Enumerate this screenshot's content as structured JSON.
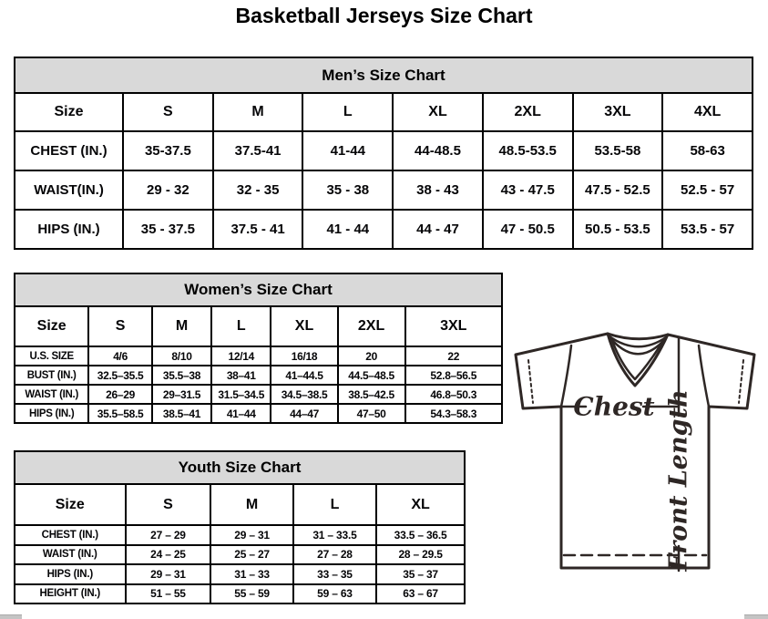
{
  "page": {
    "title": "Basketball Jerseys Size Chart"
  },
  "mens": {
    "title": "Men’s Size Chart",
    "columns": [
      "Size",
      "S",
      "M",
      "L",
      "XL",
      "2XL",
      "3XL",
      "4XL"
    ],
    "rows": [
      {
        "label": "CHEST (IN.)",
        "values": [
          "35-37.5",
          "37.5-41",
          "41-44",
          "44-48.5",
          "48.5-53.5",
          "53.5-58",
          "58-63"
        ]
      },
      {
        "label": "WAIST(IN.)",
        "values": [
          "29 - 32",
          "32 - 35",
          "35 - 38",
          "38 - 43",
          "43 - 47.5",
          "47.5 - 52.5",
          "52.5 - 57"
        ]
      },
      {
        "label": "HIPS (IN.)",
        "values": [
          "35 - 37.5",
          "37.5 - 41",
          "41 - 44",
          "44 - 47",
          "47 - 50.5",
          "50.5 - 53.5",
          "53.5 - 57"
        ]
      }
    ]
  },
  "womens": {
    "title": "Women’s Size Chart",
    "columns": [
      "Size",
      "S",
      "M",
      "L",
      "XL",
      "2XL",
      "3XL"
    ],
    "rows": [
      {
        "label": "U.S. SIZE",
        "values": [
          "4/6",
          "8/10",
          "12/14",
          "16/18",
          "20",
          "22"
        ]
      },
      {
        "label": "BUST (IN.)",
        "values": [
          "32.5–35.5",
          "35.5–38",
          "38–41",
          "41–44.5",
          "44.5–48.5",
          "52.8–56.5"
        ]
      },
      {
        "label": "WAIST (IN.)",
        "values": [
          "26–29",
          "29–31.5",
          "31.5–34.5",
          "34.5–38.5",
          "38.5–42.5",
          "46.8–50.3"
        ]
      },
      {
        "label": "HIPS (IN.)",
        "values": [
          "35.5–58.5",
          "38.5–41",
          "41–44",
          "44–47",
          "47–50",
          "54.3–58.3"
        ]
      }
    ]
  },
  "youth": {
    "title": "Youth Size Chart",
    "columns": [
      "Size",
      "S",
      "M",
      "L",
      "XL"
    ],
    "rows": [
      {
        "label": "CHEST (IN.)",
        "values": [
          "27 – 29",
          "29 – 31",
          "31 – 33.5",
          "33.5 – 36.5"
        ]
      },
      {
        "label": "WAIST (IN.)",
        "values": [
          "24 – 25",
          "25 – 27",
          "27 – 28",
          "28 – 29.5"
        ]
      },
      {
        "label": "HIPS (IN.)",
        "values": [
          "29 – 31",
          "31 – 33",
          "33 – 35",
          "35 – 37"
        ]
      },
      {
        "label": "HEIGHT (IN.)",
        "values": [
          "51 – 55",
          "55 – 59",
          "59 – 63",
          "63 – 67"
        ]
      }
    ]
  },
  "diagram": {
    "chest_label": "Chest",
    "front_length_label": "Front Length"
  },
  "colors": {
    "table_header_bg": "#d9d9d9",
    "table_border": "#000000",
    "diagram_stroke": "#2e2725",
    "scrollbar_fragment": "#c4c4c4"
  }
}
